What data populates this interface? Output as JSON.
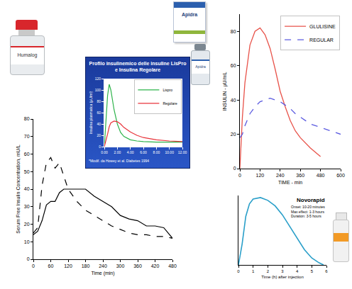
{
  "products": [
    {
      "label": "Humalog"
    },
    {
      "label": "Apidra"
    }
  ],
  "chart_data": [
    {
      "type": "line",
      "title": "Profilo insulinemico delle insuline LisPro e Insulina Regolare",
      "note": "*Modif. da Howey et al. Diabetes 1994",
      "ylabel": "Insulina plasmatica (µU/ml)",
      "x": [
        0,
        0.25,
        0.5,
        0.75,
        1,
        1.5,
        2,
        2.5,
        3,
        4,
        5,
        6,
        8,
        10,
        12
      ],
      "series": [
        {
          "name": "Lispro",
          "color": "#2db34a",
          "values": [
            0,
            40,
            90,
            110,
            100,
            65,
            40,
            25,
            18,
            12,
            10,
            9,
            8,
            8,
            8
          ]
        },
        {
          "name": "Regolare",
          "color": "#e8333a",
          "values": [
            0,
            10,
            22,
            35,
            42,
            45,
            44,
            40,
            34,
            26,
            20,
            16,
            12,
            10,
            9
          ]
        }
      ],
      "xlim": [
        0,
        12
      ],
      "ylim": [
        0,
        120
      ],
      "xticks": [
        {
          "value": 0,
          "label": "0.00"
        },
        {
          "value": 2,
          "label": "2.00"
        },
        {
          "value": 4,
          "label": "4.00"
        },
        {
          "value": 6,
          "label": "6.00"
        },
        {
          "value": 8,
          "label": "8.00"
        },
        {
          "value": 10,
          "label": "10.00"
        },
        {
          "value": 12,
          "label": "12.00"
        }
      ],
      "yticks": [
        0,
        20,
        40,
        60,
        80,
        100,
        120
      ],
      "legend": "upper right"
    },
    {
      "type": "line",
      "xlabel": "Time (min)",
      "ylabel": "Serum Free Insulin Concentration, mU/L",
      "x": [
        0,
        15,
        30,
        45,
        60,
        75,
        90,
        105,
        120,
        150,
        180,
        210,
        240,
        270,
        300,
        330,
        360,
        390,
        420,
        450,
        480
      ],
      "series": [
        {
          "color": "#000000",
          "line_style": "dashed",
          "values": [
            15,
            18,
            42,
            55,
            58,
            52,
            55,
            47,
            40,
            33,
            28,
            25,
            22,
            19,
            17,
            15,
            14,
            14,
            13,
            13,
            12
          ]
        },
        {
          "color": "#000000",
          "line_style": "solid",
          "values": [
            14,
            16,
            22,
            31,
            33,
            33,
            38,
            40,
            40,
            40,
            40,
            36,
            33,
            30,
            25,
            23,
            22,
            19,
            19,
            18,
            12
          ]
        }
      ],
      "xlim": [
        0,
        480
      ],
      "ylim": [
        0,
        80
      ],
      "xticks": [
        0,
        60,
        120,
        180,
        240,
        300,
        360,
        420,
        480
      ],
      "yticks": [
        0,
        10,
        20,
        30,
        40,
        50,
        60,
        70,
        80
      ]
    },
    {
      "type": "line",
      "xlabel": "TIME - min",
      "ylabel": "INSULIN - µU/mL",
      "x": [
        0,
        15,
        30,
        60,
        90,
        120,
        150,
        180,
        210,
        240,
        270,
        300,
        330,
        360,
        420,
        480,
        540,
        600
      ],
      "series": [
        {
          "name": "GLULISINE",
          "color": "#e8534a",
          "line_style": "solid",
          "values": [
            0,
            30,
            50,
            72,
            80,
            82,
            78,
            70,
            58,
            45,
            36,
            28,
            22,
            18,
            12,
            7,
            null,
            null
          ]
        },
        {
          "name": "REGULAR",
          "color": "#5b5be0",
          "line_style": "dashed",
          "values": [
            18,
            20,
            25,
            32,
            36,
            39,
            40,
            41,
            40,
            39,
            37,
            35,
            32,
            30,
            26,
            24,
            22,
            20
          ]
        }
      ],
      "xlim": [
        0,
        600
      ],
      "ylim": [
        0,
        90
      ],
      "xticks": [
        0,
        120,
        240,
        360,
        480,
        600
      ],
      "yticks": [
        0,
        20,
        40,
        60,
        80
      ],
      "legend": "upper right"
    },
    {
      "type": "line",
      "title": "Novorapid",
      "annotations": [
        "Onset: 10-20 minutes",
        "Max effect: 1-3 hours",
        "Duration: 3-5 hours"
      ],
      "xlabel": "Time (h) after injection",
      "x": [
        0,
        0.25,
        0.5,
        0.75,
        1,
        1.5,
        2,
        2.5,
        3,
        3.5,
        4,
        4.5,
        5,
        5.5,
        5.8
      ],
      "series": [
        {
          "color": "#2a9fc9",
          "values": [
            0,
            30,
            70,
            88,
            95,
            97,
            93,
            85,
            72,
            55,
            38,
            22,
            10,
            3,
            0
          ]
        }
      ],
      "xlim": [
        0,
        6
      ],
      "ylim": [
        0,
        100
      ],
      "xticks": [
        0,
        1,
        2,
        3,
        4,
        5,
        6
      ],
      "tick_labels": "x"
    }
  ]
}
